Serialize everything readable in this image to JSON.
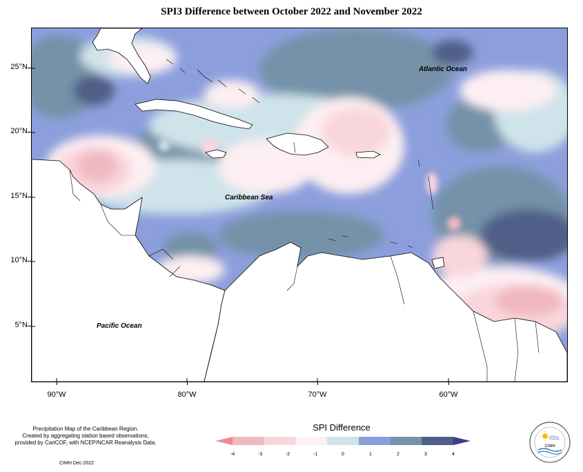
{
  "title": "SPI3 Difference between October 2022 and November 2022",
  "map": {
    "ocean_labels": {
      "atlantic": "Atlantic Ocean",
      "caribbean": "Caribbean Sea",
      "pacific": "Pacific Ocean"
    },
    "lat_labels": [
      "25°N",
      "20°N",
      "15°N",
      "10°N",
      "5°N"
    ],
    "lon_labels": [
      "90°W",
      "80°W",
      "70°W",
      "60°W"
    ]
  },
  "legend": {
    "title": "SPI Difference",
    "ticks": [
      "-4",
      "-3",
      "-2",
      "-1",
      "0",
      "1",
      "2",
      "3",
      "4"
    ],
    "colors": [
      "#f08a92",
      "#f0b8bf",
      "#f9d6dc",
      "#fdeff2",
      "#cfe3ea",
      "#8c9fdc",
      "#7592a8",
      "#4f5f87",
      "#3c3f80"
    ]
  },
  "footnote": {
    "line1": "Precipitation Map of the Caribbean Region.",
    "line2": "Created by aggregating station based observations,",
    "line3": "provided by CariCOF, with NCEP/NCAR Reanalysis Data.",
    "credit": "CIMH Dec-2022"
  },
  "logo": {
    "label": "CIMH"
  }
}
